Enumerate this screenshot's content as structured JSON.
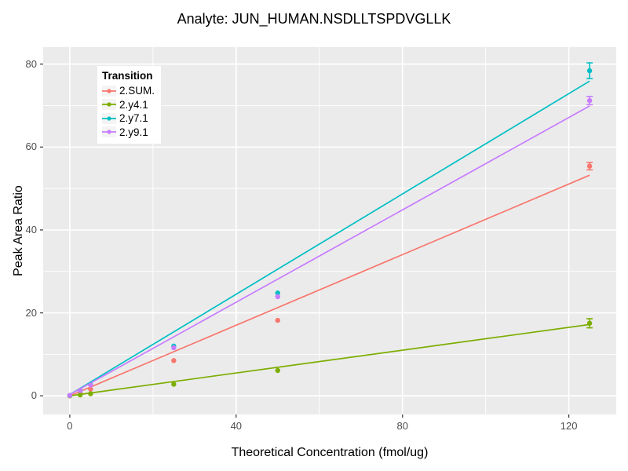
{
  "chart_data": {
    "type": "scatter",
    "title": "Analyte: JUN_HUMAN.NSDLLTSPDVGLLK",
    "xlabel": "Theoretical Concentration (fmol/ug)",
    "ylabel": "Peak Area Ratio",
    "legend_title": "Transition",
    "legend_position": "top-left-inside",
    "grid": "on",
    "panel_bg": "#EBEBEB",
    "grid_color": "#FFFFFF",
    "tick_text_color": "#4D4D4D",
    "x_ticks": [
      0,
      40,
      80,
      120
    ],
    "x_minor_ticks": [
      20,
      60,
      100
    ],
    "y_ticks": [
      0,
      20,
      40,
      60,
      80
    ],
    "y_minor_ticks": [
      10,
      30,
      50,
      70
    ],
    "xlim": [
      -6.4,
      131.4
    ],
    "ylim": [
      -4.5,
      84.1
    ],
    "x": [
      0,
      2.5,
      5,
      25,
      50,
      125
    ],
    "series": [
      {
        "name": "2.SUM.",
        "color": "#F8766D",
        "values": [
          0,
          0.8,
          1.6,
          8.5,
          18.2,
          55.4
        ],
        "errors": [
          0,
          0,
          0,
          0,
          0,
          0.9
        ],
        "fit": {
          "x0": 0,
          "y0": 0,
          "x1": 125,
          "y1": 53.2
        }
      },
      {
        "name": "2.y4.1",
        "color": "#7CAE00",
        "values": [
          0,
          0.2,
          0.5,
          2.8,
          6.1,
          17.5
        ],
        "errors": [
          0,
          0,
          0,
          0,
          0,
          1.1
        ],
        "fit": {
          "x0": 0,
          "y0": 0,
          "x1": 125,
          "y1": 17.2
        }
      },
      {
        "name": "2.y7.1",
        "color": "#00BFC4",
        "values": [
          0.1,
          1.3,
          2.7,
          12.0,
          24.8,
          78.4
        ],
        "errors": [
          0,
          0,
          0,
          0,
          0,
          1.9
        ],
        "fit": {
          "x0": 0,
          "y0": 0.3,
          "x1": 125,
          "y1": 75.9
        }
      },
      {
        "name": "2.y9.1",
        "color": "#C77CFF",
        "values": [
          0.1,
          1.3,
          2.6,
          11.6,
          23.9,
          71.2
        ],
        "errors": [
          0,
          0,
          0,
          0,
          0,
          1.0
        ],
        "fit": {
          "x0": 0,
          "y0": 0.3,
          "x1": 125,
          "y1": 69.9
        }
      }
    ]
  }
}
